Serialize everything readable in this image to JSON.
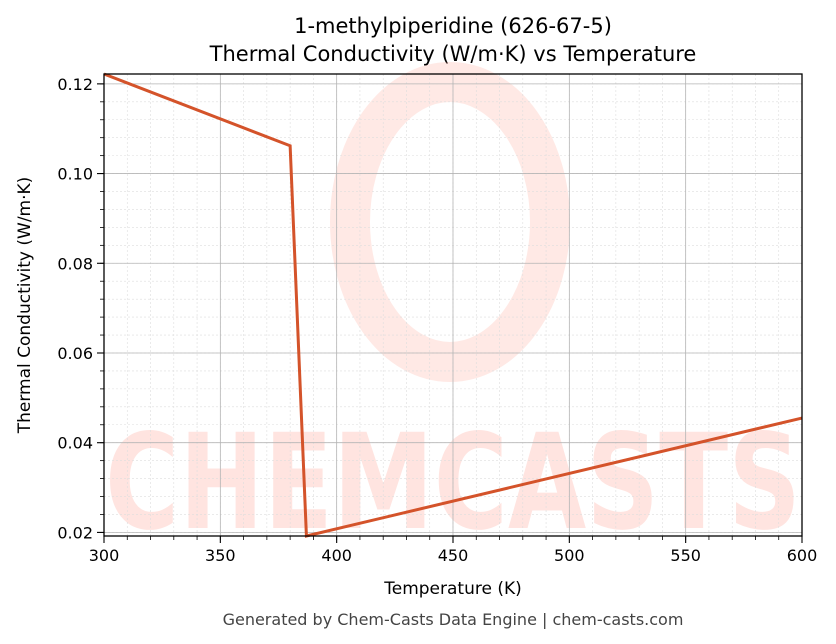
{
  "chart_data": {
    "type": "line",
    "title": "1-methylpiperidine (626-67-5)",
    "subtitle": "Thermal Conductivity (W/m·K) vs Temperature",
    "xlabel": "Temperature (K)",
    "ylabel": "Thermal Conductivity (W/m·K)",
    "xlim": [
      300,
      600
    ],
    "ylim": [
      0.0192,
      0.1222
    ],
    "xticks": [
      300,
      350,
      400,
      450,
      500,
      550,
      600
    ],
    "yticks": [
      0.02,
      0.04,
      0.06,
      0.08,
      0.1,
      0.12
    ],
    "ytick_labels": [
      "0.02",
      "0.04",
      "0.06",
      "0.08",
      "0.10",
      "0.12"
    ],
    "grid": true,
    "series": [
      {
        "color": "#d4532a",
        "x": [
          300,
          380,
          387,
          600
        ],
        "y": [
          0.1222,
          0.1062,
          0.0192,
          0.0455
        ]
      }
    ],
    "footer": "Generated by Chem-Casts Data Engine | chem-casts.com",
    "watermark": "CHEMCASTS"
  }
}
